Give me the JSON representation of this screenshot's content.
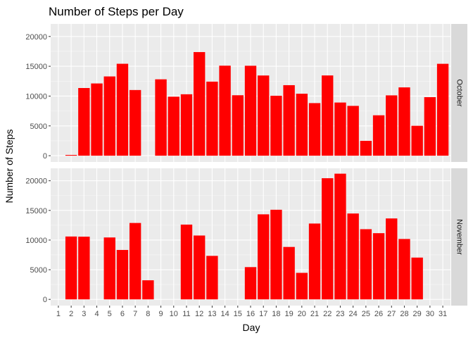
{
  "chart_data": {
    "type": "bar",
    "title": "Number of Steps per Day",
    "xlabel": "Day",
    "ylabel": "Number of Steps",
    "x_categories": [
      "1",
      "2",
      "3",
      "4",
      "5",
      "6",
      "7",
      "8",
      "9",
      "10",
      "11",
      "12",
      "13",
      "14",
      "15",
      "16",
      "17",
      "18",
      "19",
      "20",
      "21",
      "22",
      "23",
      "24",
      "25",
      "26",
      "27",
      "28",
      "29",
      "30",
      "31"
    ],
    "y_ticks": [
      0,
      5000,
      10000,
      15000,
      20000
    ],
    "ylim": [
      -1050,
      22100
    ],
    "facet_layout": "rows",
    "grid": true,
    "colors": {
      "bar": "#ff0000",
      "panel": "#ebebeb",
      "grid_major": "#ffffff",
      "strip": "#d9d9d9"
    },
    "panels": [
      {
        "label": "October",
        "values": [
          null,
          126,
          11352,
          12116,
          13294,
          15420,
          11015,
          null,
          12811,
          9900,
          10304,
          17382,
          12426,
          15098,
          10139,
          15084,
          13452,
          10056,
          11829,
          10395,
          8821,
          13460,
          8918,
          8355,
          2492,
          6778,
          10119,
          11458,
          5018,
          9819,
          15414
        ]
      },
      {
        "label": "November",
        "values": [
          null,
          10600,
          10571,
          null,
          10439,
          8334,
          12883,
          3219,
          null,
          null,
          12608,
          10765,
          7336,
          null,
          null,
          5441,
          14339,
          15110,
          8841,
          4472,
          12787,
          20427,
          21194,
          14478,
          11834,
          11162,
          13646,
          10183,
          7047,
          null,
          null
        ]
      }
    ]
  }
}
